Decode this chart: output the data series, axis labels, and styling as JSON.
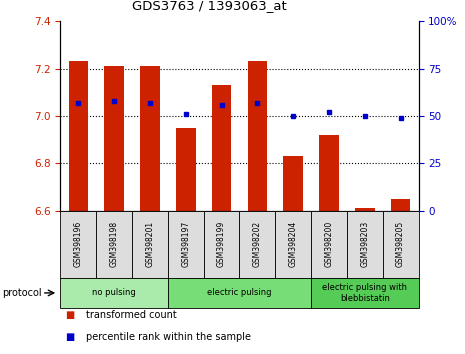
{
  "title": "GDS3763 / 1393063_at",
  "samples": [
    "GSM398196",
    "GSM398198",
    "GSM398201",
    "GSM398197",
    "GSM398199",
    "GSM398202",
    "GSM398204",
    "GSM398200",
    "GSM398203",
    "GSM398205"
  ],
  "transformed_count": [
    7.23,
    7.21,
    7.21,
    6.95,
    7.13,
    7.23,
    6.83,
    6.92,
    6.61,
    6.65
  ],
  "percentile_rank": [
    57,
    58,
    57,
    51,
    56,
    57,
    50,
    52,
    50,
    49
  ],
  "ylim_left": [
    6.6,
    7.4
  ],
  "ylim_right": [
    0,
    100
  ],
  "yticks_left": [
    6.6,
    6.8,
    7.0,
    7.2,
    7.4
  ],
  "yticks_right": [
    0,
    25,
    50,
    75,
    100
  ],
  "groups": [
    {
      "label": "no pulsing",
      "start": 0,
      "end": 3,
      "color": "#aaeaaa"
    },
    {
      "label": "electric pulsing",
      "start": 3,
      "end": 7,
      "color": "#77dd77"
    },
    {
      "label": "electric pulsing with\nblebbistatin",
      "start": 7,
      "end": 10,
      "color": "#55cc55"
    }
  ],
  "bar_color": "#cc2200",
  "dot_color": "#0000cc",
  "left_tick_color": "#cc2200",
  "right_tick_color": "#0000cc",
  "legend_items": [
    {
      "color": "#cc2200",
      "label": "transformed count"
    },
    {
      "color": "#0000cc",
      "label": "percentile rank within the sample"
    }
  ],
  "protocol_label": "protocol",
  "bar_bottom": 6.6,
  "sample_box_color": "#dddddd",
  "fig_width": 4.65,
  "fig_height": 3.54,
  "dpi": 100
}
